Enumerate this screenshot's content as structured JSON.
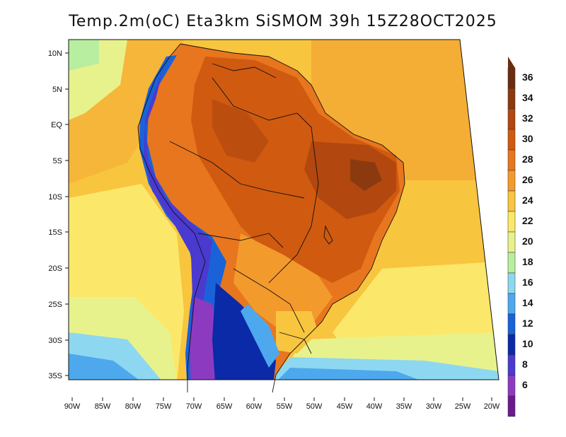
{
  "title": "Temp.2m(oC) Eta3km SiSMOM 39h 15Z28OCT2025",
  "axes": {
    "lat_labels": [
      "10N",
      "5N",
      "EQ",
      "5S",
      "10S",
      "15S",
      "20S",
      "25S",
      "30S",
      "35S"
    ],
    "lon_labels": [
      "90W",
      "85W",
      "80W",
      "75W",
      "70W",
      "65W",
      "60W",
      "55W",
      "50W",
      "45W",
      "40W",
      "35W",
      "30W",
      "25W",
      "20W"
    ]
  },
  "colorbar": {
    "labels": [
      "36",
      "34",
      "32",
      "30",
      "28",
      "26",
      "24",
      "22",
      "20",
      "18",
      "16",
      "14",
      "12",
      "10",
      "8",
      "6"
    ],
    "colors": [
      "#6b2c0f",
      "#8b3a0f",
      "#b2480f",
      "#d05a10",
      "#e8761f",
      "#f39a2d",
      "#f8c53f",
      "#fbe86a",
      "#e8f28c",
      "#b8eea0",
      "#8dd8f0",
      "#4ea8ee",
      "#1a62d8",
      "#0a2aa8",
      "#4a3ad0",
      "#8c3bc0",
      "#6a1a90"
    ]
  },
  "map": {
    "variable": "2m temperature",
    "units": "oC",
    "model": "Eta3km SiSMOM",
    "forecast_hour": "39h",
    "valid_time": "15Z28OCT2025"
  }
}
